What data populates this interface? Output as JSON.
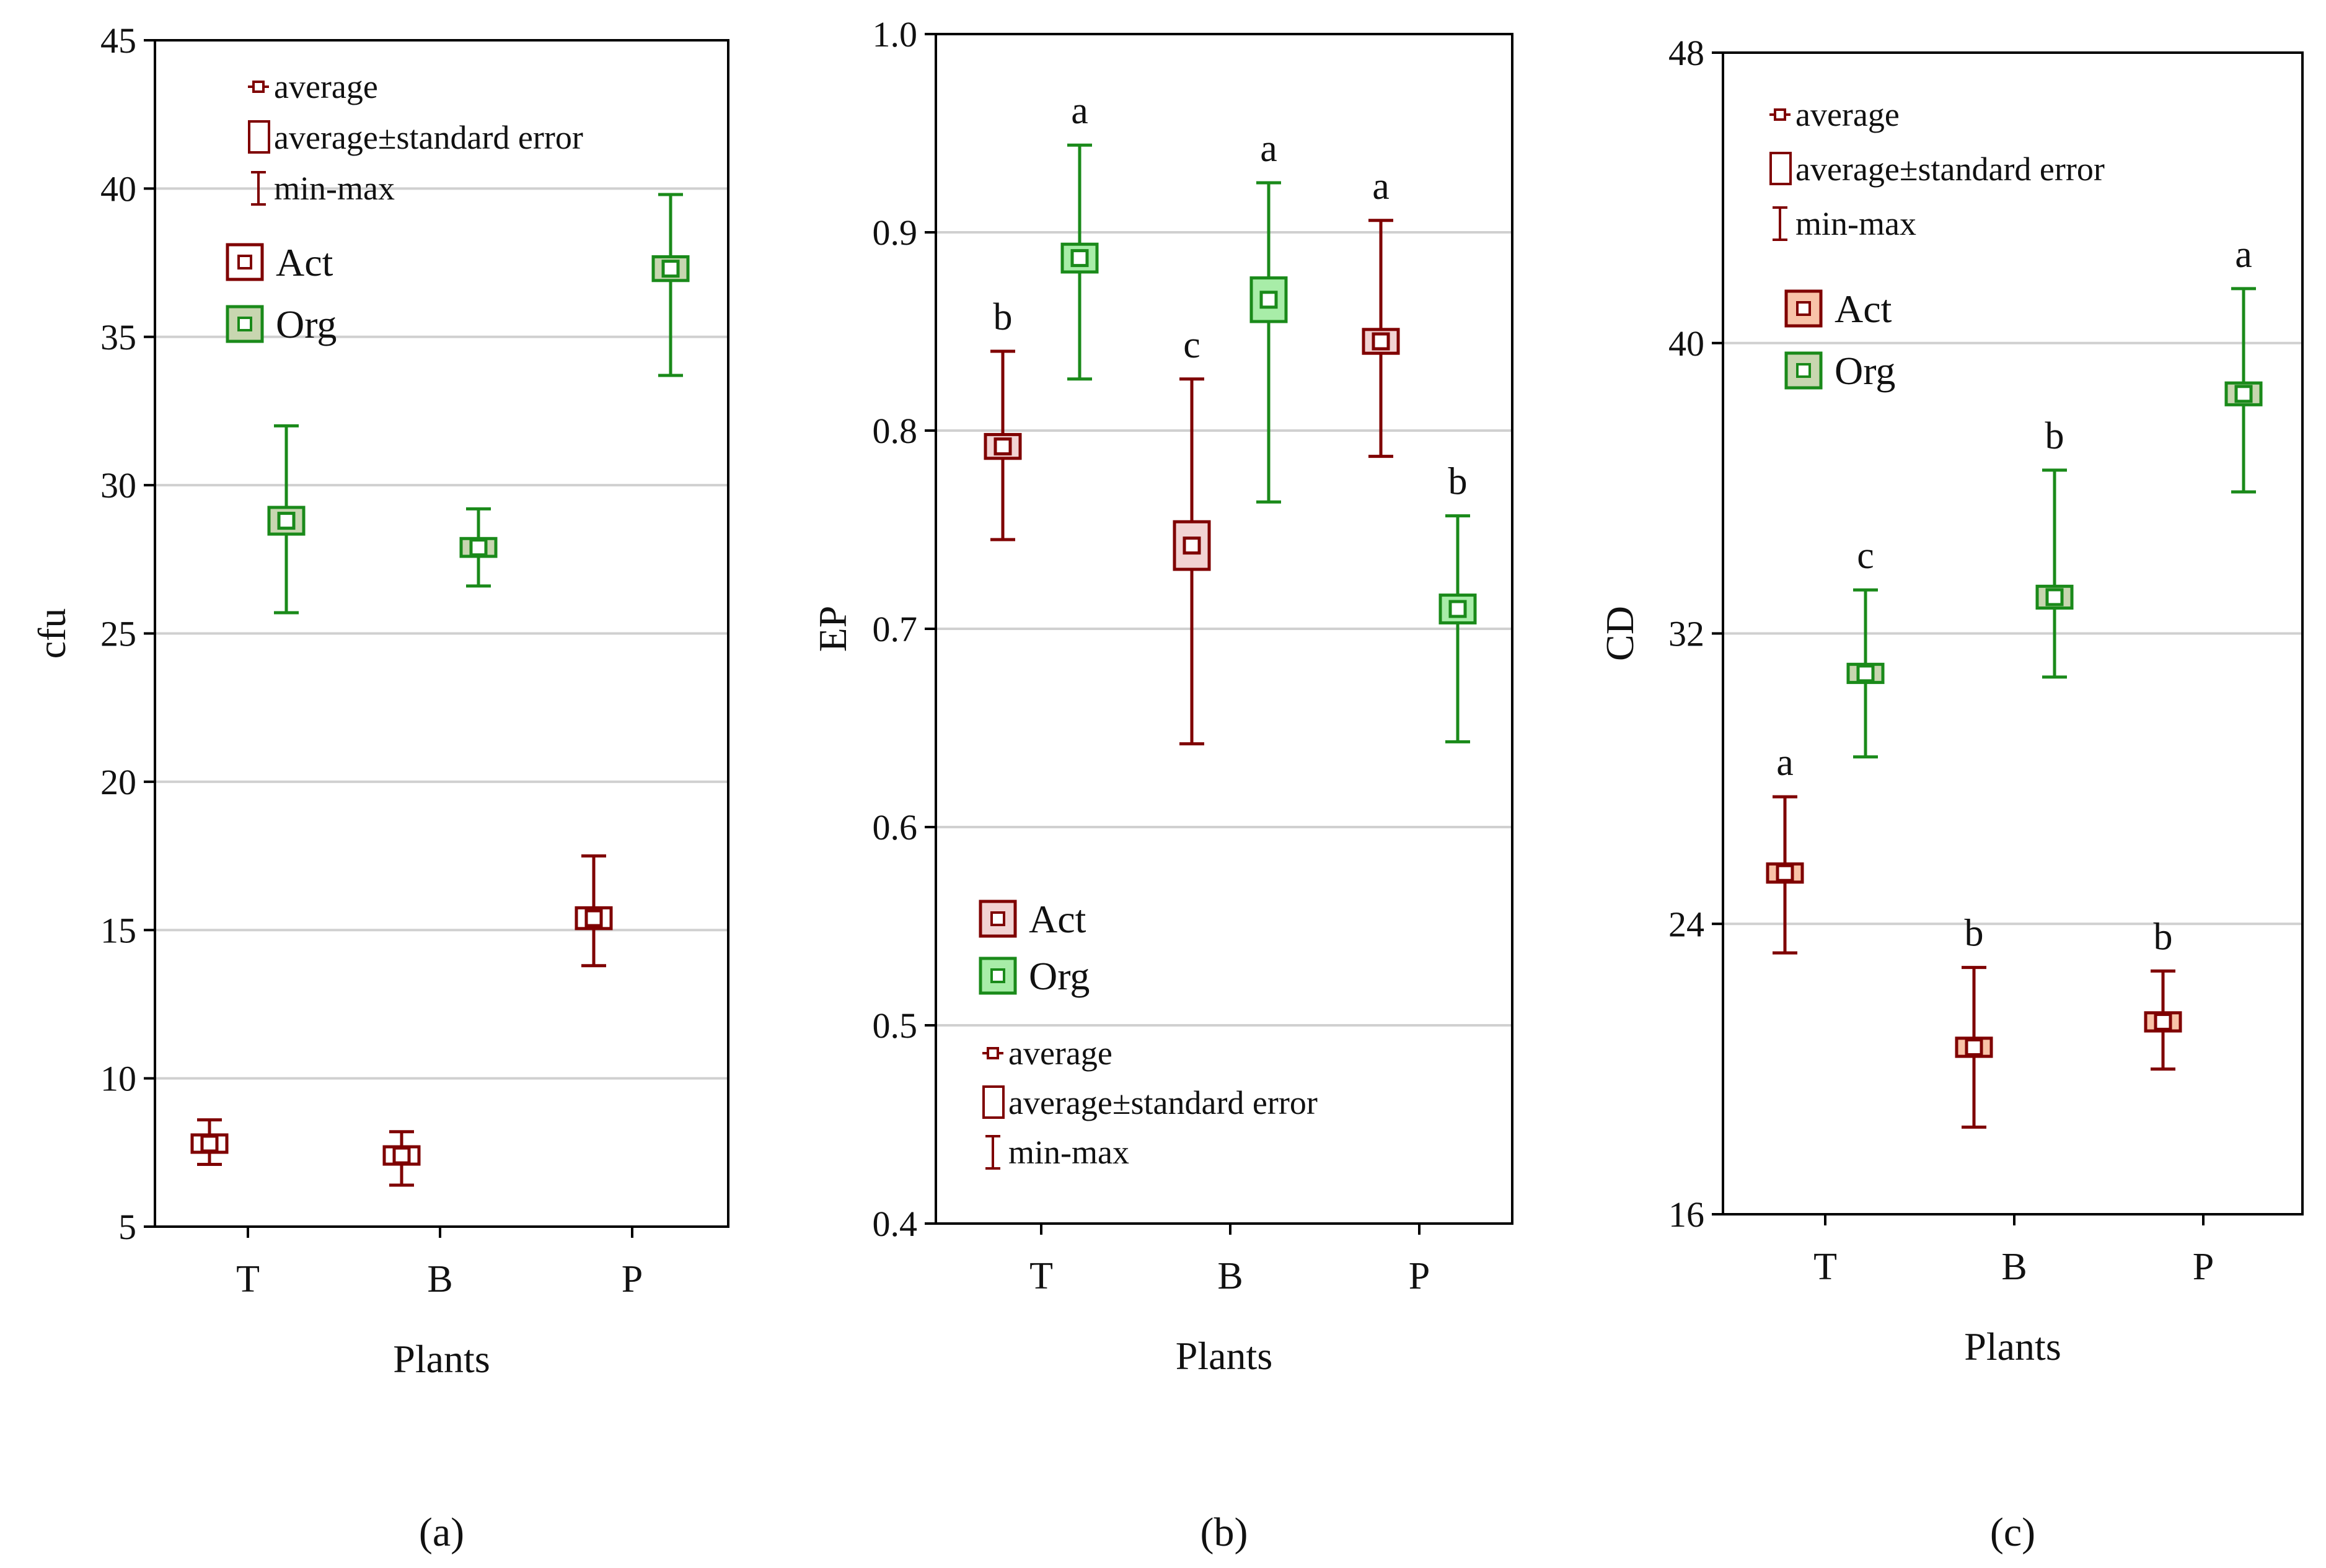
{
  "colors": {
    "act_stroke": "#7f0000",
    "act_fill_light": "#f2d3d3",
    "act_fill_orange": "#f8c3a8",
    "org_stroke": "#1a8a1a",
    "org_fill_gray": "#c8d6b0",
    "org_fill_light": "#a8eda8",
    "grid": "#d0d0d0",
    "axis": "#000000"
  },
  "chart_data": [
    {
      "panel_label": "(a)",
      "type": "scatter",
      "title": "",
      "xlabel": "Plants",
      "ylabel": "cfu",
      "categories": [
        "T",
        "B",
        "P"
      ],
      "ylim": [
        5,
        45
      ],
      "yticks": [
        "5",
        "10",
        "15",
        "20",
        "25",
        "30",
        "35",
        "40",
        "45"
      ],
      "grid": true,
      "stats_legend": {
        "placement": "top-left",
        "average": "average",
        "se": "average±standard error",
        "minmax": "min-max"
      },
      "series_legend": {
        "placement": "top-left",
        "act": "Act",
        "org": "Org"
      },
      "act_fill": "none",
      "org_fill": "gray",
      "series": [
        {
          "name": "Act",
          "key": "act",
          "mean": [
            7.8,
            7.4,
            15.4
          ],
          "se": [
            0.25,
            0.25,
            0.35
          ],
          "min": [
            7.1,
            6.4,
            13.8
          ],
          "max": [
            8.6,
            8.2,
            17.5
          ],
          "letters": [
            "",
            "",
            ""
          ]
        },
        {
          "name": "Org",
          "key": "org",
          "mean": [
            28.8,
            27.9,
            37.3
          ],
          "se": [
            0.45,
            0.3,
            0.4
          ],
          "min": [
            25.7,
            26.6,
            33.7
          ],
          "max": [
            32.0,
            29.2,
            39.8
          ],
          "letters": [
            "",
            "",
            ""
          ]
        }
      ]
    },
    {
      "panel_label": "(b)",
      "type": "scatter",
      "title": "",
      "xlabel": "Plants",
      "ylabel": "EP",
      "categories": [
        "T",
        "B",
        "P"
      ],
      "ylim": [
        0.4,
        1.0
      ],
      "yticks": [
        "0.4",
        "0.5",
        "0.6",
        "0.7",
        "0.8",
        "0.9",
        "1.0"
      ],
      "grid": true,
      "stats_legend": {
        "placement": "bottom-left",
        "average": "average",
        "se": "average±standard error",
        "minmax": "min-max"
      },
      "series_legend": {
        "placement": "bottom-left",
        "act": "Act",
        "org": "Org"
      },
      "act_fill": "light",
      "org_fill": "light",
      "series": [
        {
          "name": "Act",
          "key": "act",
          "mean": [
            0.792,
            0.742,
            0.845
          ],
          "se": [
            0.006,
            0.012,
            0.006
          ],
          "min": [
            0.745,
            0.642,
            0.787
          ],
          "max": [
            0.84,
            0.826,
            0.906
          ],
          "letters": [
            "b",
            "c",
            "a"
          ]
        },
        {
          "name": "Org",
          "key": "org",
          "mean": [
            0.887,
            0.866,
            0.71
          ],
          "se": [
            0.007,
            0.011,
            0.007
          ],
          "min": [
            0.826,
            0.764,
            0.643
          ],
          "max": [
            0.944,
            0.925,
            0.757
          ],
          "letters": [
            "a",
            "a",
            "b"
          ]
        }
      ]
    },
    {
      "panel_label": "(c)",
      "type": "scatter",
      "title": "",
      "xlabel": "Plants",
      "ylabel": "CD",
      "categories": [
        "T",
        "B",
        "P"
      ],
      "ylim": [
        16,
        48
      ],
      "yticks": [
        "16",
        "24",
        "32",
        "40",
        "48"
      ],
      "grid": true,
      "stats_legend": {
        "placement": "top-left",
        "average": "average",
        "se": "average±standard error",
        "minmax": "min-max"
      },
      "series_legend": {
        "placement": "top-left",
        "act": "Act",
        "org": "Org"
      },
      "act_fill": "orange",
      "org_fill": "gray",
      "series": [
        {
          "name": "Act",
          "key": "act",
          "mean": [
            25.4,
            20.6,
            21.3
          ],
          "se": [
            0.25,
            0.25,
            0.25
          ],
          "min": [
            23.2,
            18.4,
            20.0
          ],
          "max": [
            27.5,
            22.8,
            22.7
          ],
          "letters": [
            "a",
            "b",
            "b"
          ]
        },
        {
          "name": "Org",
          "key": "org",
          "mean": [
            30.9,
            33.0,
            38.6
          ],
          "se": [
            0.25,
            0.3,
            0.3
          ],
          "min": [
            28.6,
            30.8,
            35.9
          ],
          "max": [
            33.2,
            36.5,
            41.5
          ],
          "letters": [
            "c",
            "b",
            "a"
          ]
        }
      ]
    }
  ]
}
